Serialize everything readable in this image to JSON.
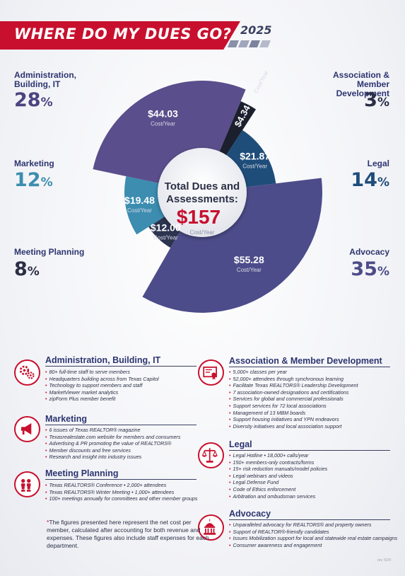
{
  "header": {
    "title": "WHERE DO MY DUES GO?",
    "year": "2025"
  },
  "side_labels": {
    "administration": {
      "label": "Administration, Building, IT",
      "pct_number": "28",
      "pct_symbol": "%"
    },
    "marketing": {
      "label": "Marketing",
      "pct_number": "12",
      "pct_symbol": "%"
    },
    "meeting": {
      "label": "Meeting Planning",
      "pct_number": "8",
      "pct_symbol": "%"
    },
    "association": {
      "label": "Association & Member Development",
      "pct_number": "3",
      "pct_symbol": "%"
    },
    "legal": {
      "label": "Legal",
      "pct_number": "14",
      "pct_symbol": "%"
    },
    "advocacy": {
      "label": "Advocacy",
      "pct_number": "35",
      "pct_symbol": "%"
    }
  },
  "center": {
    "line1": "Total Dues and",
    "line2": "Assessments:",
    "amount": "$157",
    "unit": "Cost/Year"
  },
  "chart_data": {
    "type": "pie",
    "title": "WHERE DO MY DUES GO?",
    "total": 157,
    "unit": "Cost/Year",
    "slices": [
      {
        "name": "Administration, Building, IT",
        "value": 44.03,
        "value_label": "$44.03",
        "percent": 28,
        "color": "#5a4e8c"
      },
      {
        "name": "Association & Member Development",
        "value": 4.34,
        "value_label": "$4.34",
        "percent": 3,
        "color": "#1c1f2e"
      },
      {
        "name": "Legal",
        "value": 21.87,
        "value_label": "$21.87",
        "percent": 14,
        "color": "#1f4d7a"
      },
      {
        "name": "Advocacy",
        "value": 55.28,
        "value_label": "$55.28",
        "percent": 35,
        "color": "#4d4c8a"
      },
      {
        "name": "Meeting Planning",
        "value": 12.0,
        "value_label": "$12.00",
        "percent": 8,
        "color": "#2c3450"
      },
      {
        "name": "Marketing",
        "value": 19.48,
        "value_label": "$19.48",
        "percent": 12,
        "color": "#3c8db0"
      }
    ]
  },
  "colors": {
    "accent_red": "#c8102e",
    "navy": "#2d3570",
    "pct_admin": "#4a4580",
    "pct_marketing": "#3c8db0",
    "pct_legal": "#1f4d7a",
    "pct_advocacy": "#4d4c8a",
    "pct_dark": "#2a2f45"
  },
  "sections": {
    "administration": {
      "title": "Administration, Building, IT",
      "icon": "gears-icon",
      "items": [
        "80+ full-time staff to serve members",
        "Headquarters building across from Texas Capitol",
        "Technology to support members and staff",
        "MarketViewer market analytics",
        "zipForm Plus member benefit"
      ]
    },
    "marketing": {
      "title": "Marketing",
      "icon": "megaphone-icon",
      "items": [
        "6 issues of Texas REALTOR® magazine",
        "Texasrealestate.com website for members and consumers",
        "Advertising & PR promoting the value of REALTORS®",
        "Member discounts and free services",
        "Research and insight into industry issues"
      ]
    },
    "meeting": {
      "title": "Meeting Planning",
      "icon": "audience-icon",
      "items": [
        "Texas REALTORS® Conference • 2,000+ attendees",
        "Texas REALTORS® Winter Meeting • 1,000+ attendees",
        "100+ meetings annually for committees and other member groups"
      ]
    },
    "association": {
      "title": "Association & Member Development",
      "icon": "certificate-icon",
      "items": [
        "5,000+ classes per year",
        "52,000+ attendees through synchronous learning",
        "Facilitate Texas REALTORS® Leadership Development",
        "7 association-owned designations and certifications",
        "Services for global and commercial professionals",
        "Support services for 72 local associations",
        "Management of 13 MBM boards",
        "Support housing initiatives and YPN endeavors",
        "Diversity initiatives and local association support"
      ]
    },
    "legal": {
      "title": "Legal",
      "icon": "scales-icon",
      "items": [
        "Legal Hotline • 18,000+ calls/year",
        "150+ members-only contracts/forms",
        "15+ risk reduction manuals/model policies",
        "Legal webinars and videos",
        "Legal Defense Fund",
        "Code of Ethics enforcement",
        "Arbitration and ombudsman services"
      ]
    },
    "advocacy": {
      "title": "Advocacy",
      "icon": "capitol-icon",
      "items": [
        "Unparalleled advocacy for REALTORS® and property owners",
        "Support of REALTOR®-friendly candidates",
        "Issues Mobilization support for local and statewide real estate campaigns",
        "Consumer awareness and engagement"
      ]
    }
  },
  "footnote": {
    "star": "*",
    "text": "The figures presented here represent the net cost per member, calculated after accounting for both revenue and expenses. These figures also include staff expenses for each department."
  },
  "version": "rev. 5/24"
}
